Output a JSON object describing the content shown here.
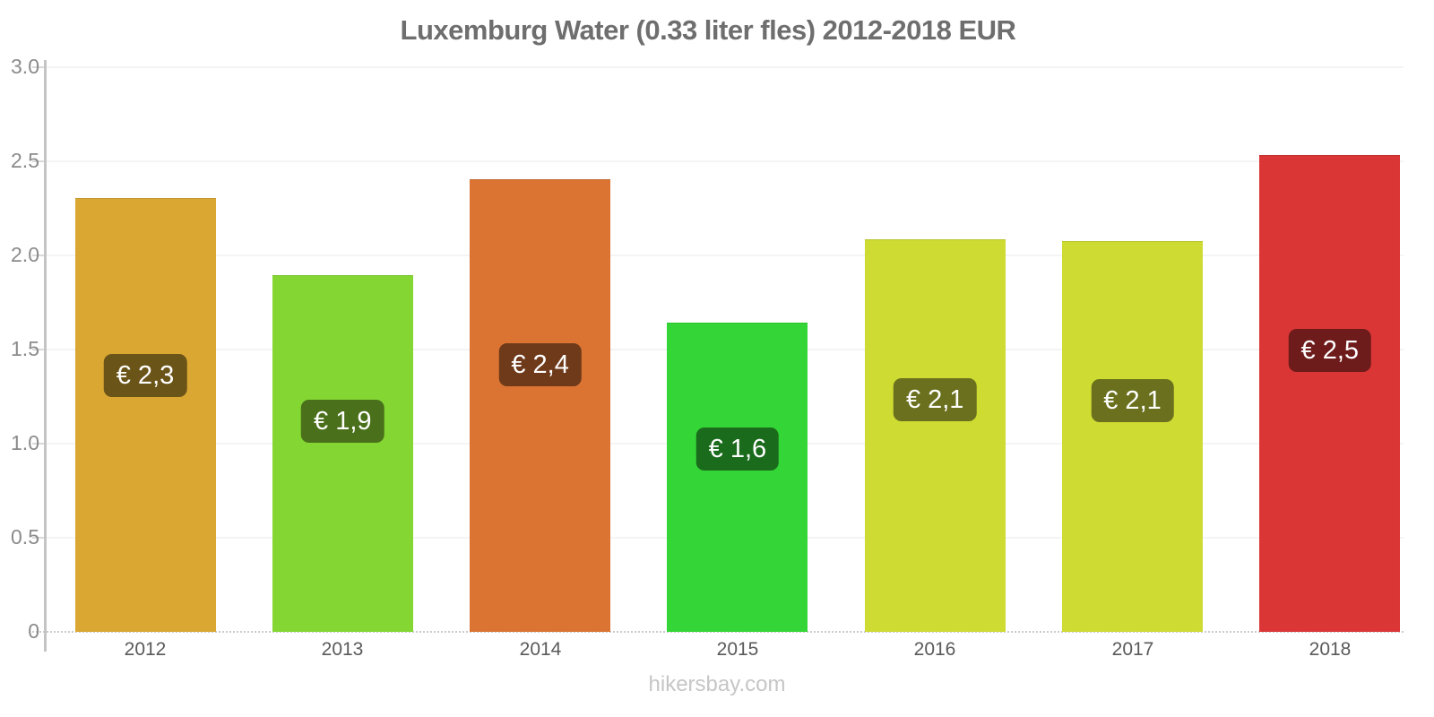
{
  "title": "Luxemburg Water (0.33 liter fles) 2012-2018 EUR",
  "footer": "hikersbay.com",
  "colors": {
    "title_text": "#6e6e6e",
    "axis_line": "#c4c4c4",
    "gridline": "#f4f4f4",
    "baseline": "#cbcbcb",
    "y_label_text": "#8b8b8b",
    "x_label_text": "#5a5a5a",
    "watermark_text": "#c6c6c6",
    "badge_text": "#ffffff"
  },
  "chart_data": {
    "type": "bar",
    "title": "Luxemburg Water (0.33 liter fles) 2012-2018 EUR",
    "xlabel": "",
    "ylabel": "",
    "categories": [
      "2012",
      "2013",
      "2014",
      "2015",
      "2016",
      "2017",
      "2018"
    ],
    "values": [
      2.3,
      1.89,
      2.4,
      1.64,
      2.08,
      2.07,
      2.53
    ],
    "bar_labels": [
      "€ 2,3",
      "€ 1,9",
      "€ 2,4",
      "€ 1,6",
      "€ 2,1",
      "€ 2,1",
      "€ 2,5"
    ],
    "bar_colors": [
      "#dba733",
      "#84d733",
      "#db7433",
      "#33d636",
      "#cedb33",
      "#cedb33",
      "#db3636"
    ],
    "label_bg_colors": [
      "#6b5418",
      "#4a701c",
      "#6e3a1a",
      "#1b6b1d",
      "#6a701e",
      "#6a701e",
      "#6e1b1b"
    ],
    "ylim": [
      0,
      3.0
    ],
    "yticks": [
      0,
      0.5,
      1.0,
      1.5,
      2.0,
      2.5,
      3.0
    ],
    "ytick_labels": [
      "0",
      "0.5",
      "1.0",
      "1.5",
      "2.0",
      "2.5",
      "3.0"
    ],
    "grid": true,
    "legend": false,
    "currency": "EUR",
    "source": "hikersbay.com"
  }
}
